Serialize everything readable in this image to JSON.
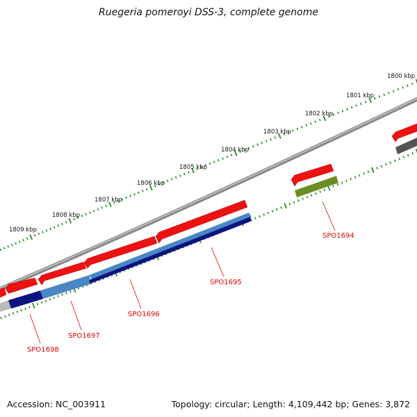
{
  "title": "Ruegeria pomeroyi DSS-3, complete genome",
  "footer": {
    "accession": "Accession: NC_003911",
    "summary": "Topology: circular; Length: 4,109,442 bp; Genes: 3,872"
  },
  "colors": {
    "backbone": "#7d7d7d",
    "tick": "#2a8a2a",
    "gene_red": "#ee1111",
    "gene_navy": "#0d1480",
    "gene_steel": "#4a86c4",
    "gene_olive": "#6b8e23",
    "gene_gray": "#555555",
    "gene_lightgray": "#bbbbbb",
    "label": "#dd0000"
  },
  "scale_labels": [
    "1800 kbp",
    "1801 kbp",
    "1802 kbp",
    "1803 kbp",
    "1804 kbp",
    "1805 kbp",
    "1806 kbp",
    "1807 kbp",
    "1808 kbp",
    "1809 kbp"
  ],
  "gene_labels": [
    "SPO1694",
    "SPO1695",
    "SPO1696",
    "SPO1697",
    "SPO1698"
  ]
}
